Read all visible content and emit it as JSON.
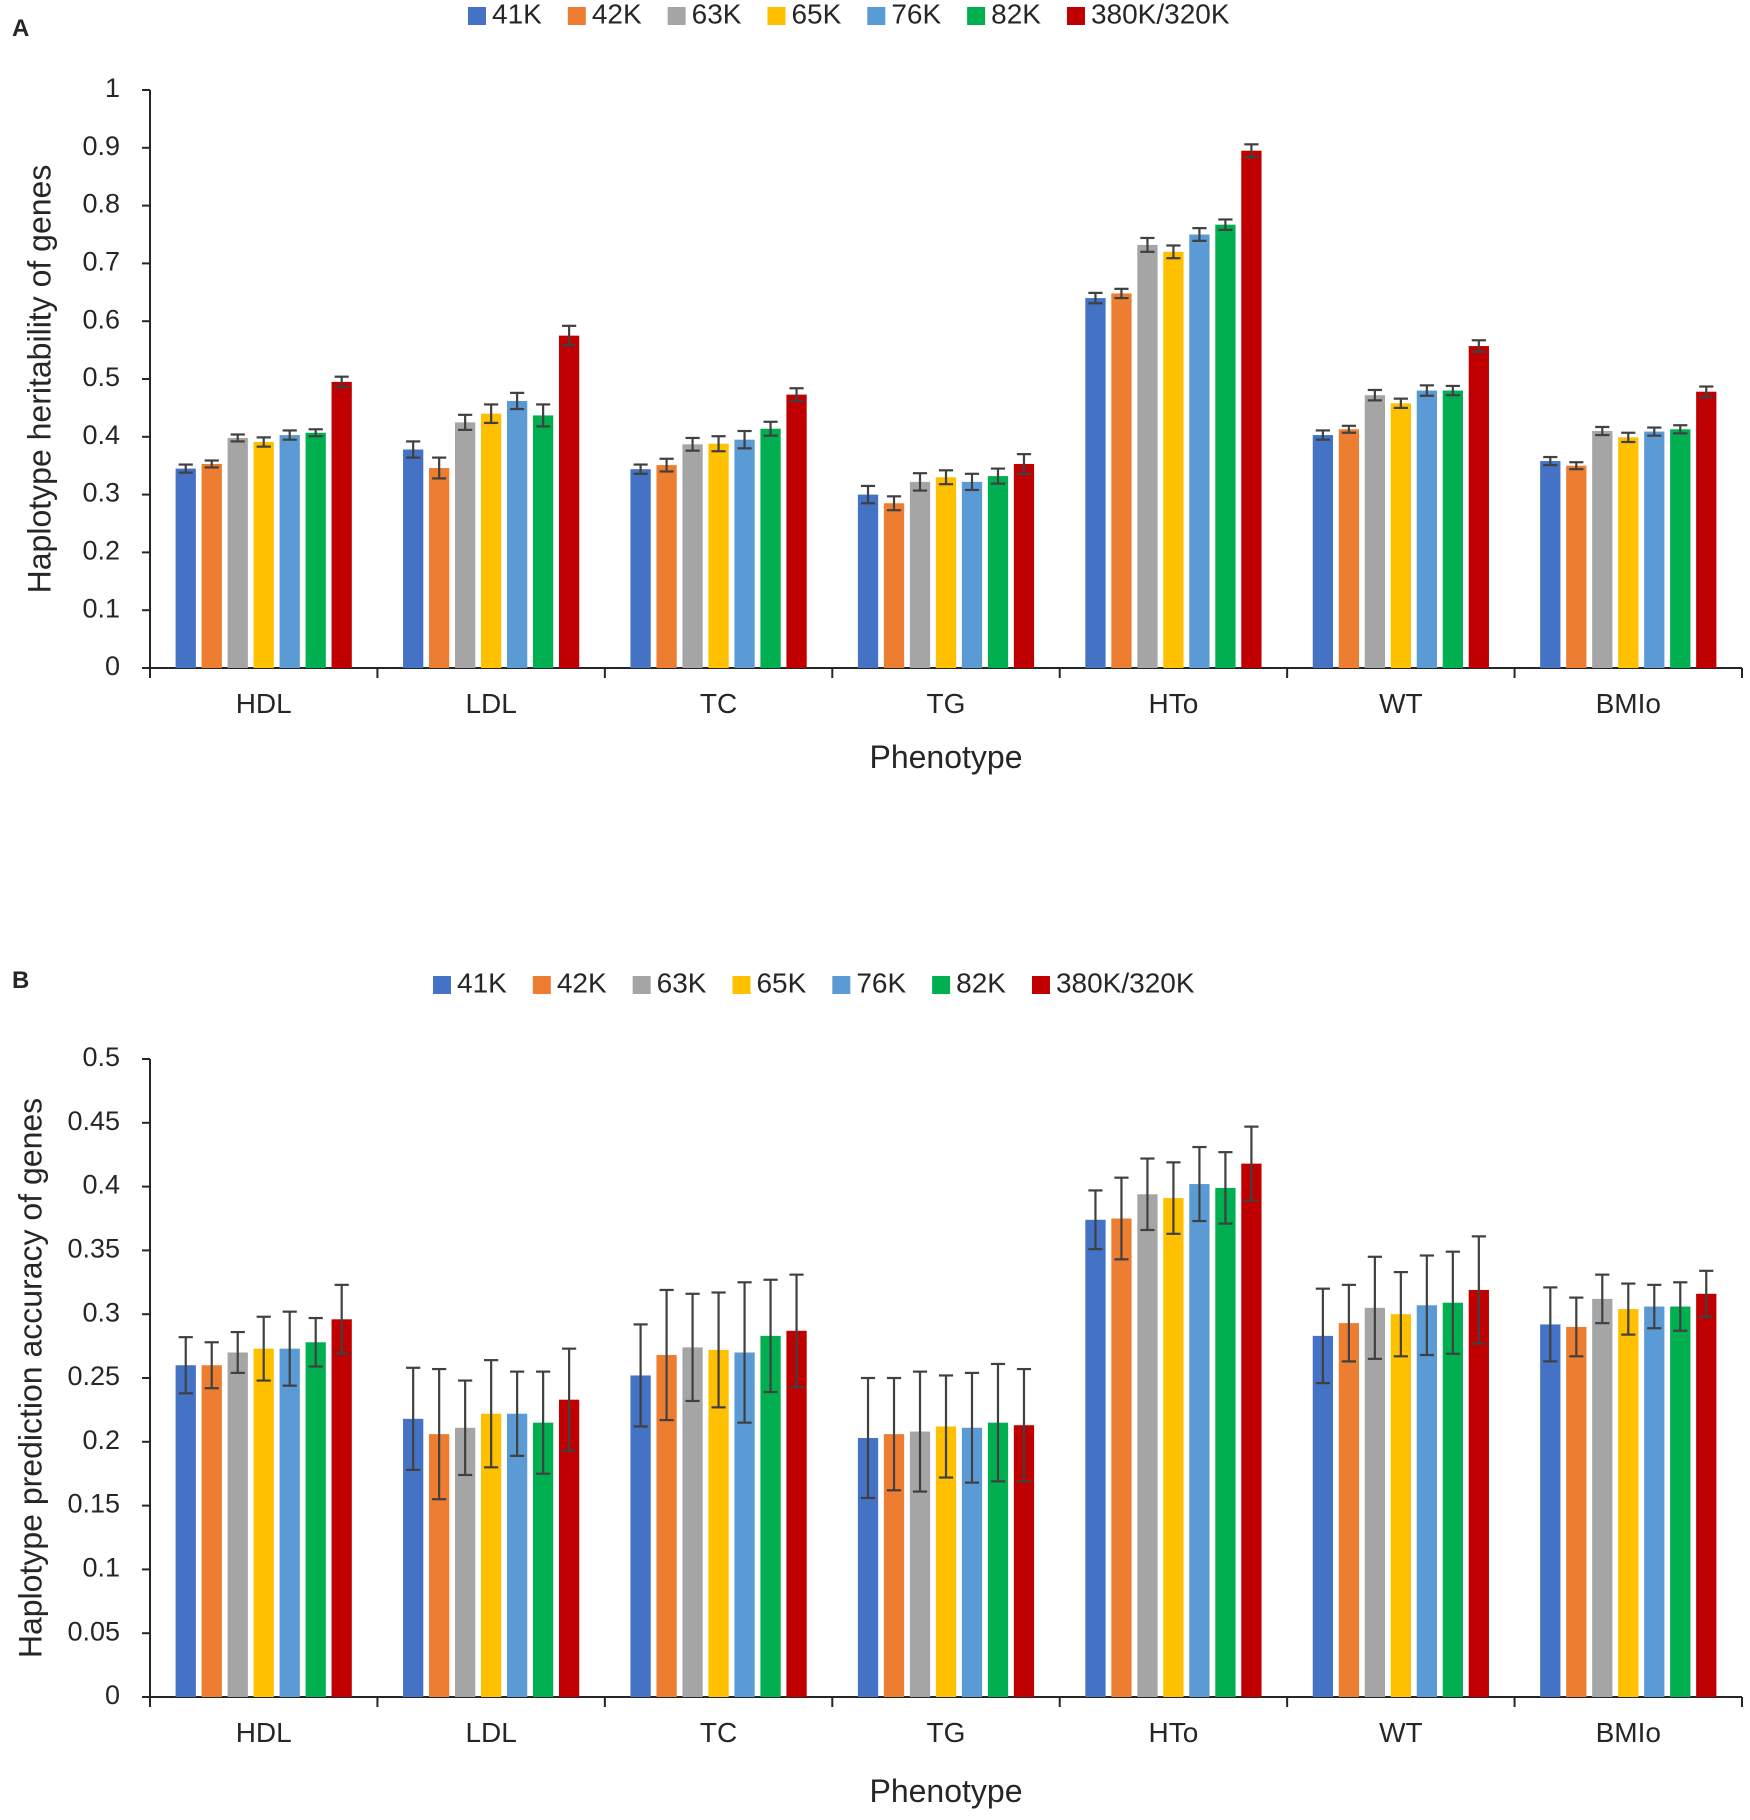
{
  "series_colors": [
    "#4472C4",
    "#ED7D31",
    "#A5A5A5",
    "#FFC000",
    "#5B9BD5",
    "#00B050",
    "#C00000"
  ],
  "chart_data": [
    {
      "panel": "A",
      "type": "bar",
      "title": "",
      "xlabel": "Phenotype",
      "ylabel": "Haplotype heritability of genes",
      "ylim": [
        0,
        1
      ],
      "yticks": [
        "0",
        "0.1",
        "0.2",
        "0.3",
        "0.4",
        "0.5",
        "0.6",
        "0.7",
        "0.8",
        "0.9",
        "1"
      ],
      "legend_position": "top",
      "categories": [
        "HDL",
        "LDL",
        "TC",
        "TG",
        "HTo",
        "WT",
        "BMIo"
      ],
      "series": [
        {
          "name": "41K",
          "values": [
            0.345,
            0.378,
            0.344,
            0.3,
            0.64,
            0.403,
            0.358
          ],
          "errors": [
            0.007,
            0.014,
            0.008,
            0.015,
            0.009,
            0.008,
            0.007
          ]
        },
        {
          "name": "42K",
          "values": [
            0.353,
            0.346,
            0.351,
            0.285,
            0.648,
            0.413,
            0.35
          ],
          "errors": [
            0.006,
            0.018,
            0.011,
            0.012,
            0.008,
            0.006,
            0.006
          ]
        },
        {
          "name": "63K",
          "values": [
            0.398,
            0.425,
            0.387,
            0.322,
            0.732,
            0.472,
            0.41
          ],
          "errors": [
            0.006,
            0.013,
            0.011,
            0.015,
            0.012,
            0.009,
            0.007
          ]
        },
        {
          "name": "65K",
          "values": [
            0.391,
            0.44,
            0.388,
            0.33,
            0.72,
            0.458,
            0.399
          ],
          "errors": [
            0.008,
            0.016,
            0.013,
            0.012,
            0.011,
            0.008,
            0.008
          ]
        },
        {
          "name": "76K",
          "values": [
            0.403,
            0.462,
            0.395,
            0.322,
            0.75,
            0.48,
            0.409
          ],
          "errors": [
            0.008,
            0.014,
            0.015,
            0.014,
            0.011,
            0.009,
            0.007
          ]
        },
        {
          "name": "82K",
          "values": [
            0.407,
            0.437,
            0.414,
            0.332,
            0.767,
            0.48,
            0.413
          ],
          "errors": [
            0.006,
            0.019,
            0.012,
            0.013,
            0.009,
            0.008,
            0.007
          ]
        },
        {
          "name": "380K/320K",
          "values": [
            0.495,
            0.575,
            0.473,
            0.353,
            0.895,
            0.557,
            0.478
          ],
          "errors": [
            0.009,
            0.017,
            0.011,
            0.017,
            0.011,
            0.01,
            0.009
          ]
        }
      ]
    },
    {
      "panel": "B",
      "type": "bar",
      "title": "",
      "xlabel": "Phenotype",
      "ylabel": "Haplotype prediction accuracy of genes",
      "ylim": [
        0,
        0.5
      ],
      "yticks": [
        "0",
        "0.05",
        "0.1",
        "0.15",
        "0.2",
        "0.25",
        "0.3",
        "0.35",
        "0.4",
        "0.45",
        "0.5"
      ],
      "legend_position": "top",
      "categories": [
        "HDL",
        "LDL",
        "TC",
        "TG",
        "HTo",
        "WT",
        "BMIo"
      ],
      "series": [
        {
          "name": "41K",
          "values": [
            0.26,
            0.218,
            0.252,
            0.203,
            0.374,
            0.283,
            0.292
          ],
          "errors": [
            0.022,
            0.04,
            0.04,
            0.047,
            0.023,
            0.037,
            0.029
          ]
        },
        {
          "name": "42K",
          "values": [
            0.26,
            0.206,
            0.268,
            0.206,
            0.375,
            0.293,
            0.29
          ],
          "errors": [
            0.018,
            0.051,
            0.051,
            0.044,
            0.032,
            0.03,
            0.023
          ]
        },
        {
          "name": "63K",
          "values": [
            0.27,
            0.211,
            0.274,
            0.208,
            0.394,
            0.305,
            0.312
          ],
          "errors": [
            0.016,
            0.037,
            0.042,
            0.047,
            0.028,
            0.04,
            0.019
          ]
        },
        {
          "name": "65K",
          "values": [
            0.273,
            0.222,
            0.272,
            0.212,
            0.391,
            0.3,
            0.304
          ],
          "errors": [
            0.025,
            0.042,
            0.045,
            0.04,
            0.028,
            0.033,
            0.02
          ]
        },
        {
          "name": "76K",
          "values": [
            0.273,
            0.222,
            0.27,
            0.211,
            0.402,
            0.307,
            0.306
          ],
          "errors": [
            0.029,
            0.033,
            0.055,
            0.043,
            0.029,
            0.039,
            0.017
          ]
        },
        {
          "name": "82K",
          "values": [
            0.278,
            0.215,
            0.283,
            0.215,
            0.399,
            0.309,
            0.306
          ],
          "errors": [
            0.019,
            0.04,
            0.044,
            0.046,
            0.028,
            0.04,
            0.019
          ]
        },
        {
          "name": "380K/320K",
          "values": [
            0.296,
            0.233,
            0.287,
            0.213,
            0.418,
            0.319,
            0.316
          ],
          "errors": [
            0.027,
            0.04,
            0.044,
            0.044,
            0.029,
            0.042,
            0.018
          ]
        }
      ]
    }
  ]
}
